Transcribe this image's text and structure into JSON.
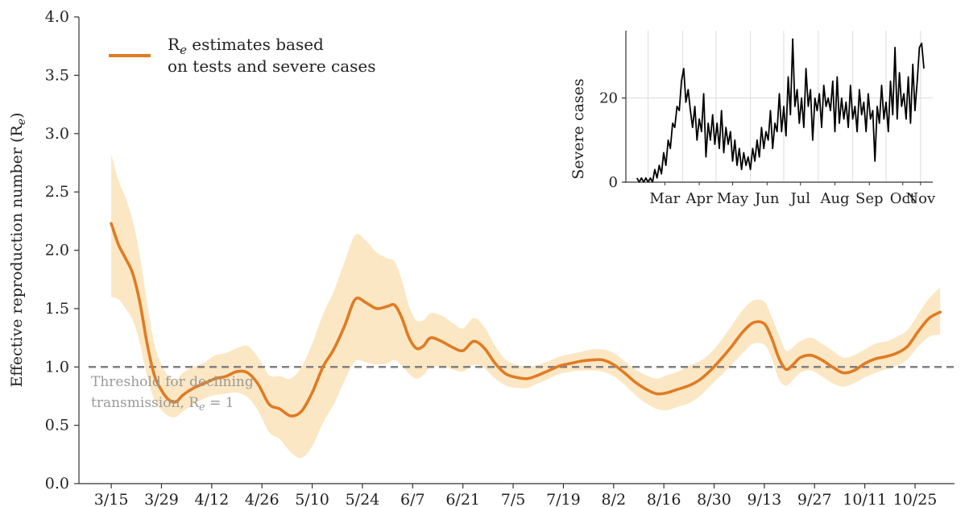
{
  "chart_data": [
    {
      "type": "line",
      "title": "",
      "xlabel": "",
      "ylabel": "Effective reproduction number (R",
      "ylabel_sub": "e",
      "ylabel_close": ")",
      "ylim": [
        0.0,
        4.0
      ],
      "yticks": [
        "0.0",
        "0.5",
        "1.0",
        "1.5",
        "2.0",
        "2.5",
        "3.0",
        "3.5",
        "4.0"
      ],
      "ytick_values": [
        0.0,
        0.5,
        1.0,
        1.5,
        2.0,
        2.5,
        3.0,
        3.5,
        4.0
      ],
      "xticks": [
        "3/15",
        "3/29",
        "4/12",
        "4/26",
        "5/10",
        "5/24",
        "6/7",
        "6/21",
        "7/5",
        "7/19",
        "8/2",
        "8/16",
        "8/30",
        "9/13",
        "9/27",
        "10/11",
        "10/25"
      ],
      "xlim": [
        "2020-03-06",
        "2020-11-05"
      ],
      "legend": {
        "position": "top-left",
        "line1_pre": "R",
        "line1_sub": "e",
        "line1_post": " estimates based",
        "line2": "on tests and severe cases"
      },
      "threshold": {
        "value": 1.0,
        "line1": "Threshold for declining",
        "line2_pre": "transmission, R",
        "line2_sub": "e",
        "line2_post": " = 1"
      },
      "colors": {
        "line": "#e07b24",
        "band": "#fbe7c3",
        "threshold": "#808080"
      },
      "series": [
        {
          "x": [
            "2020-03-15",
            "2020-03-17",
            "2020-03-19",
            "2020-03-21",
            "2020-03-23",
            "2020-03-25",
            "2020-03-27",
            "2020-03-29",
            "2020-03-31",
            "2020-04-02",
            "2020-04-04",
            "2020-04-07",
            "2020-04-10",
            "2020-04-13",
            "2020-04-16",
            "2020-04-19",
            "2020-04-22",
            "2020-04-25",
            "2020-04-28",
            "2020-05-01",
            "2020-05-04",
            "2020-05-07",
            "2020-05-10",
            "2020-05-13",
            "2020-05-16",
            "2020-05-19",
            "2020-05-22",
            "2020-05-25",
            "2020-05-28",
            "2020-05-31",
            "2020-06-02",
            "2020-06-04",
            "2020-06-06",
            "2020-06-08",
            "2020-06-10",
            "2020-06-12",
            "2020-06-15",
            "2020-06-18",
            "2020-06-21",
            "2020-06-24",
            "2020-06-27",
            "2020-06-30",
            "2020-07-03",
            "2020-07-06",
            "2020-07-09",
            "2020-07-12",
            "2020-07-15",
            "2020-07-18",
            "2020-07-21",
            "2020-07-24",
            "2020-07-27",
            "2020-07-30",
            "2020-08-02",
            "2020-08-05",
            "2020-08-08",
            "2020-08-11",
            "2020-08-14",
            "2020-08-17",
            "2020-08-20",
            "2020-08-23",
            "2020-08-26",
            "2020-08-29",
            "2020-09-01",
            "2020-09-04",
            "2020-09-07",
            "2020-09-10",
            "2020-09-13",
            "2020-09-15",
            "2020-09-17",
            "2020-09-19",
            "2020-09-21",
            "2020-09-23",
            "2020-09-26",
            "2020-09-29",
            "2020-10-02",
            "2020-10-05",
            "2020-10-08",
            "2020-10-11",
            "2020-10-14",
            "2020-10-17",
            "2020-10-20",
            "2020-10-23",
            "2020-10-26",
            "2020-10-29",
            "2020-11-01"
          ],
          "y": [
            2.23,
            2.05,
            1.93,
            1.8,
            1.55,
            1.2,
            0.93,
            0.8,
            0.72,
            0.7,
            0.76,
            0.82,
            0.86,
            0.9,
            0.92,
            0.96,
            0.95,
            0.85,
            0.68,
            0.64,
            0.58,
            0.62,
            0.78,
            1.0,
            1.15,
            1.35,
            1.58,
            1.55,
            1.5,
            1.52,
            1.53,
            1.42,
            1.25,
            1.16,
            1.18,
            1.25,
            1.22,
            1.17,
            1.14,
            1.22,
            1.16,
            1.03,
            0.94,
            0.91,
            0.9,
            0.93,
            0.97,
            1.01,
            1.03,
            1.05,
            1.06,
            1.06,
            1.02,
            0.95,
            0.87,
            0.81,
            0.77,
            0.78,
            0.81,
            0.84,
            0.89,
            0.97,
            1.07,
            1.18,
            1.3,
            1.38,
            1.37,
            1.25,
            1.08,
            0.98,
            1.02,
            1.08,
            1.1,
            1.06,
            1.0,
            0.95,
            0.97,
            1.03,
            1.07,
            1.09,
            1.12,
            1.18,
            1.31,
            1.42,
            1.47
          ],
          "lower": [
            1.6,
            1.58,
            1.5,
            1.4,
            1.2,
            0.92,
            0.72,
            0.63,
            0.58,
            0.57,
            0.62,
            0.68,
            0.73,
            0.76,
            0.77,
            0.78,
            0.74,
            0.62,
            0.44,
            0.38,
            0.27,
            0.22,
            0.32,
            0.52,
            0.68,
            0.88,
            1.05,
            1.04,
            1.02,
            1.03,
            1.06,
            1.01,
            0.94,
            0.9,
            0.93,
            1.0,
            1.0,
            0.98,
            0.96,
            1.02,
            0.99,
            0.9,
            0.84,
            0.82,
            0.82,
            0.86,
            0.9,
            0.94,
            0.96,
            0.97,
            0.97,
            0.96,
            0.92,
            0.85,
            0.76,
            0.69,
            0.64,
            0.63,
            0.66,
            0.69,
            0.75,
            0.84,
            0.93,
            1.02,
            1.12,
            1.2,
            1.19,
            1.08,
            0.9,
            0.84,
            0.89,
            0.95,
            0.97,
            0.92,
            0.86,
            0.83,
            0.86,
            0.91,
            0.95,
            0.98,
            1.01,
            1.07,
            1.18,
            1.26,
            1.28
          ],
          "upper": [
            2.82,
            2.6,
            2.45,
            2.25,
            1.95,
            1.55,
            1.2,
            1.02,
            0.92,
            0.88,
            0.95,
            1.0,
            1.04,
            1.1,
            1.12,
            1.16,
            1.18,
            1.08,
            0.93,
            0.92,
            0.9,
            1.0,
            1.2,
            1.45,
            1.65,
            1.9,
            2.13,
            2.08,
            1.98,
            1.93,
            1.9,
            1.74,
            1.52,
            1.4,
            1.4,
            1.46,
            1.44,
            1.38,
            1.33,
            1.42,
            1.34,
            1.18,
            1.06,
            1.02,
            1.0,
            1.02,
            1.05,
            1.09,
            1.11,
            1.13,
            1.15,
            1.15,
            1.12,
            1.05,
            0.98,
            0.93,
            0.9,
            0.93,
            0.96,
            1.01,
            1.05,
            1.12,
            1.23,
            1.36,
            1.49,
            1.57,
            1.56,
            1.43,
            1.28,
            1.14,
            1.17,
            1.22,
            1.25,
            1.2,
            1.14,
            1.08,
            1.1,
            1.15,
            1.2,
            1.22,
            1.26,
            1.32,
            1.46,
            1.59,
            1.68
          ]
        }
      ]
    },
    {
      "type": "line",
      "title": "",
      "xlabel": "",
      "ylabel": "Severe cases",
      "ylim": [
        0,
        36
      ],
      "yticks": [
        "0",
        "20"
      ],
      "ytick_values": [
        0,
        20
      ],
      "xticks": [
        "Mar",
        "Apr",
        "May",
        "Jun",
        "Jul",
        "Aug",
        "Sep",
        "Oct",
        "Nov"
      ],
      "xlim": [
        "2020-02-10",
        "2020-11-12"
      ],
      "grid": true,
      "colors": {
        "line": "#000000",
        "grid": "#dddddd"
      },
      "series": [
        {
          "x": [
            "2020-02-20",
            "2020-02-22",
            "2020-02-24",
            "2020-02-26",
            "2020-02-28",
            "2020-03-01",
            "2020-03-03",
            "2020-03-05",
            "2020-03-07",
            "2020-03-09",
            "2020-03-11",
            "2020-03-13",
            "2020-03-15",
            "2020-03-17",
            "2020-03-19",
            "2020-03-21",
            "2020-03-23",
            "2020-03-25",
            "2020-03-27",
            "2020-03-29",
            "2020-03-31",
            "2020-04-02",
            "2020-04-04",
            "2020-04-06",
            "2020-04-08",
            "2020-04-10",
            "2020-04-12",
            "2020-04-14",
            "2020-04-16",
            "2020-04-18",
            "2020-04-20",
            "2020-04-22",
            "2020-04-24",
            "2020-04-26",
            "2020-04-28",
            "2020-04-30",
            "2020-05-02",
            "2020-05-04",
            "2020-05-06",
            "2020-05-08",
            "2020-05-10",
            "2020-05-12",
            "2020-05-14",
            "2020-05-16",
            "2020-05-18",
            "2020-05-20",
            "2020-05-22",
            "2020-05-24",
            "2020-05-26",
            "2020-05-28",
            "2020-05-30",
            "2020-06-01",
            "2020-06-03",
            "2020-06-05",
            "2020-06-07",
            "2020-06-09",
            "2020-06-11",
            "2020-06-13",
            "2020-06-15",
            "2020-06-17",
            "2020-06-19",
            "2020-06-21",
            "2020-06-23",
            "2020-06-25",
            "2020-06-27",
            "2020-06-29",
            "2020-07-01",
            "2020-07-03",
            "2020-07-05",
            "2020-07-07",
            "2020-07-09",
            "2020-07-11",
            "2020-07-13",
            "2020-07-15",
            "2020-07-17",
            "2020-07-19",
            "2020-07-21",
            "2020-07-23",
            "2020-07-25",
            "2020-07-27",
            "2020-07-29",
            "2020-07-31",
            "2020-08-02",
            "2020-08-04",
            "2020-08-06",
            "2020-08-08",
            "2020-08-10",
            "2020-08-12",
            "2020-08-14",
            "2020-08-16",
            "2020-08-18",
            "2020-08-20",
            "2020-08-22",
            "2020-08-24",
            "2020-08-26",
            "2020-08-28",
            "2020-08-30",
            "2020-09-01",
            "2020-09-03",
            "2020-09-05",
            "2020-09-07",
            "2020-09-09",
            "2020-09-11",
            "2020-09-13",
            "2020-09-15",
            "2020-09-17",
            "2020-09-19",
            "2020-09-21",
            "2020-09-23",
            "2020-09-25",
            "2020-09-27",
            "2020-09-29",
            "2020-10-01",
            "2020-10-03",
            "2020-10-05",
            "2020-10-07",
            "2020-10-09",
            "2020-10-11",
            "2020-10-13",
            "2020-10-15",
            "2020-10-17",
            "2020-10-19",
            "2020-10-21",
            "2020-10-23",
            "2020-10-25",
            "2020-10-27",
            "2020-10-29",
            "2020-10-31",
            "2020-11-02",
            "2020-11-04"
          ],
          "y": [
            1,
            0,
            1,
            0,
            1,
            0,
            1,
            0,
            3,
            1,
            4,
            2,
            7,
            4,
            10,
            8,
            14,
            13,
            18,
            17,
            24,
            27,
            19,
            22,
            17,
            13,
            18,
            10,
            15,
            12,
            21,
            6,
            14,
            10,
            16,
            9,
            14,
            8,
            17,
            7,
            13,
            9,
            12,
            5,
            10,
            4,
            8,
            3,
            7,
            4,
            6,
            3,
            8,
            5,
            10,
            6,
            13,
            8,
            12,
            10,
            17,
            8,
            14,
            12,
            21,
            12,
            18,
            11,
            25,
            16,
            34,
            18,
            22,
            14,
            20,
            13,
            27,
            18,
            22,
            10,
            20,
            17,
            21,
            13,
            23,
            18,
            20,
            17,
            24,
            12,
            25,
            14,
            20,
            15,
            19,
            13,
            23,
            15,
            18,
            12,
            22,
            16,
            19,
            12,
            21,
            15,
            17,
            5,
            18,
            14,
            23,
            15,
            19,
            12,
            24,
            16,
            32,
            15,
            26,
            18,
            21,
            15,
            25,
            14,
            28,
            17,
            24,
            32,
            33,
            27
          ]
        }
      ]
    }
  ]
}
